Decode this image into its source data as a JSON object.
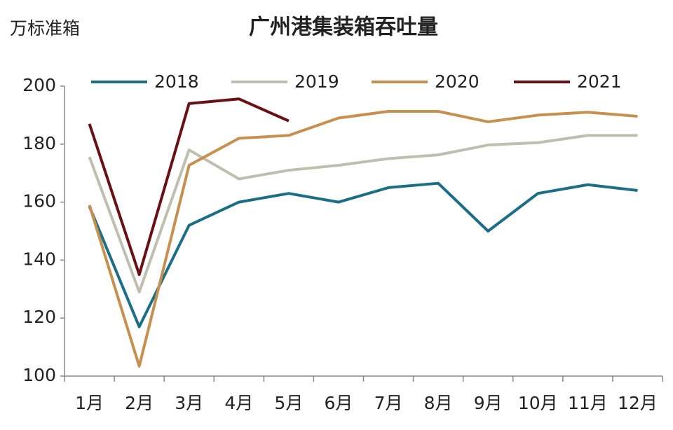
{
  "chart_data": {
    "type": "line",
    "title": "广州港集装箱吞吐量",
    "y_label": "万标准箱",
    "categories": [
      "1月",
      "2月",
      "3月",
      "4月",
      "5月",
      "6月",
      "7月",
      "8月",
      "9月",
      "10月",
      "11月",
      "12月"
    ],
    "series": [
      {
        "name": "2018",
        "color": "#1a6e87",
        "values": [
          158.5,
          117,
          152,
          160,
          163,
          160,
          165,
          166.5,
          150,
          163,
          166,
          164
        ]
      },
      {
        "name": "2019",
        "color": "#bfbfaf",
        "values": [
          175.6,
          129,
          178,
          168,
          171,
          172.7,
          175,
          176.3,
          179.7,
          180.5,
          183,
          183
        ]
      },
      {
        "name": "2020",
        "color": "#c8904f",
        "values": [
          159,
          103.4,
          172.7,
          182,
          183,
          189,
          191.3,
          191.3,
          187.7,
          190,
          191,
          189.6
        ]
      },
      {
        "name": "2021",
        "color": "#6b0f14",
        "values": [
          187,
          135,
          194,
          195.6,
          188,
          null,
          null,
          null,
          null,
          null,
          null,
          null
        ]
      }
    ],
    "ylim": [
      100,
      200
    ],
    "yticks": [
      100,
      120,
      140,
      160,
      180,
      200
    ],
    "grid": false
  }
}
